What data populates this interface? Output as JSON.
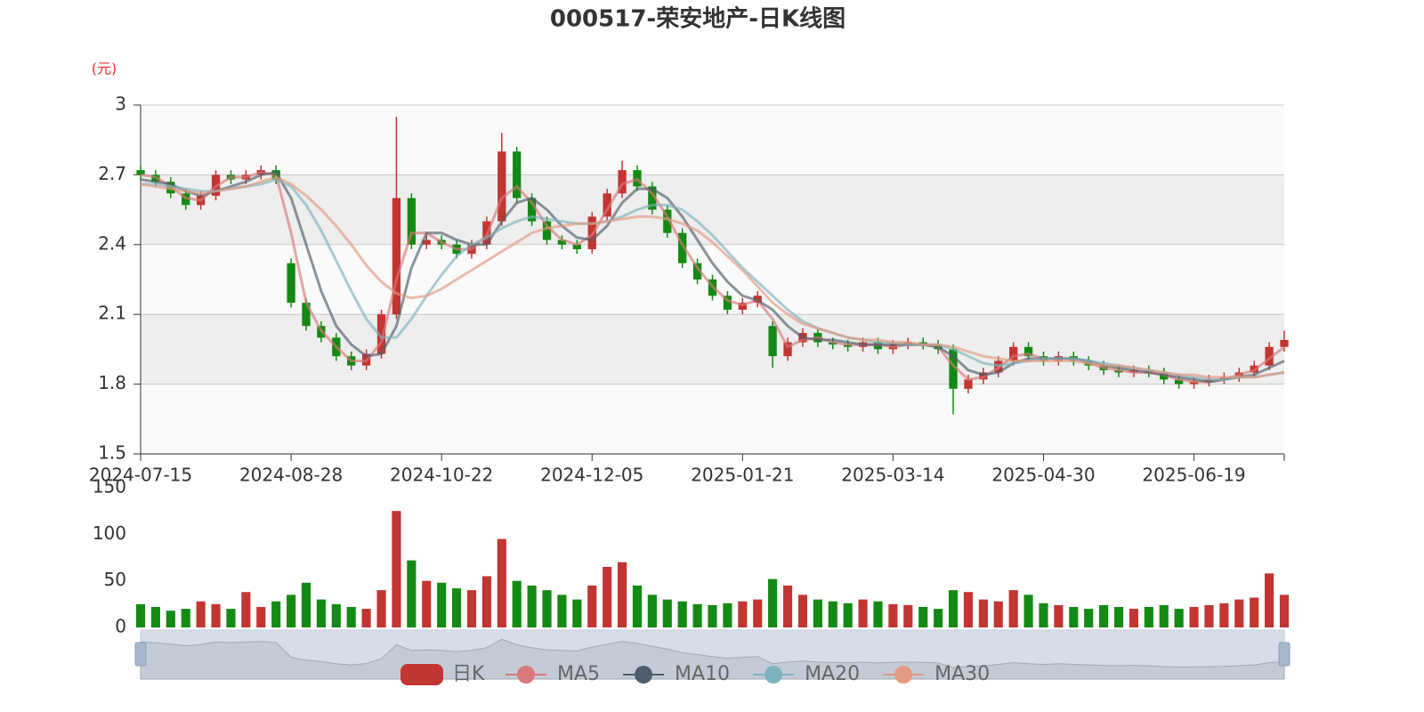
{
  "chart_data": [
    {
      "type": "candlestick",
      "title": "000517-荣安地产-日K线图",
      "y_unit": "(元)",
      "candle_name": "日K",
      "up_color": "#c23531",
      "down_color": "#138a13",
      "categories": [
        "2024-07-15",
        null,
        null,
        null,
        null,
        null,
        null,
        null,
        null,
        null,
        "2024-08-28",
        null,
        null,
        null,
        null,
        null,
        null,
        null,
        null,
        null,
        "2024-10-22",
        null,
        null,
        null,
        null,
        null,
        null,
        null,
        null,
        null,
        "2024-12-05",
        null,
        null,
        null,
        null,
        null,
        null,
        null,
        null,
        null,
        "2025-01-21",
        null,
        null,
        null,
        null,
        null,
        null,
        null,
        null,
        null,
        "2025-03-14",
        null,
        null,
        null,
        null,
        null,
        null,
        null,
        null,
        null,
        "2025-04-30",
        null,
        null,
        null,
        null,
        null,
        null,
        null,
        null,
        null,
        "2025-06-19",
        null,
        null,
        null,
        null,
        null,
        null
      ],
      "open": [
        2.72,
        2.7,
        2.67,
        2.62,
        2.57,
        2.61,
        2.7,
        2.68,
        2.7,
        2.72,
        2.32,
        2.15,
        2.05,
        2.0,
        1.92,
        1.88,
        1.93,
        2.1,
        2.6,
        2.4,
        2.42,
        2.4,
        2.36,
        2.4,
        2.5,
        2.8,
        2.6,
        2.5,
        2.42,
        2.4,
        2.38,
        2.52,
        2.62,
        2.72,
        2.65,
        2.55,
        2.45,
        2.32,
        2.25,
        2.18,
        2.12,
        2.15,
        2.05,
        1.92,
        1.98,
        2.02,
        1.98,
        1.97,
        1.96,
        1.98,
        1.95,
        1.97,
        1.98,
        1.97,
        1.95,
        1.78,
        1.82,
        1.85,
        1.9,
        1.96,
        1.92,
        1.9,
        1.92,
        1.9,
        1.88,
        1.86,
        1.85,
        1.86,
        1.85,
        1.82,
        1.8,
        1.81,
        1.82,
        1.83,
        1.85,
        1.88,
        1.96
      ],
      "close": [
        2.7,
        2.67,
        2.62,
        2.57,
        2.61,
        2.7,
        2.68,
        2.7,
        2.72,
        2.68,
        2.15,
        2.05,
        2.0,
        1.92,
        1.88,
        1.93,
        2.1,
        2.6,
        2.4,
        2.42,
        2.4,
        2.36,
        2.4,
        2.5,
        2.8,
        2.6,
        2.5,
        2.42,
        2.4,
        2.38,
        2.52,
        2.62,
        2.72,
        2.65,
        2.55,
        2.45,
        2.32,
        2.25,
        2.18,
        2.12,
        2.15,
        2.18,
        1.92,
        1.98,
        2.02,
        1.98,
        1.97,
        1.96,
        1.98,
        1.95,
        1.97,
        1.98,
        1.97,
        1.95,
        1.78,
        1.82,
        1.85,
        1.9,
        1.96,
        1.92,
        1.9,
        1.92,
        1.9,
        1.88,
        1.86,
        1.85,
        1.86,
        1.85,
        1.82,
        1.8,
        1.81,
        1.82,
        1.83,
        1.85,
        1.88,
        1.96,
        1.99
      ],
      "low": [
        2.68,
        2.65,
        2.6,
        2.55,
        2.55,
        2.59,
        2.66,
        2.66,
        2.68,
        2.66,
        2.13,
        2.03,
        1.98,
        1.9,
        1.86,
        1.86,
        1.91,
        2.08,
        2.38,
        2.38,
        2.38,
        2.34,
        2.34,
        2.38,
        2.48,
        2.58,
        2.48,
        2.4,
        2.38,
        2.36,
        2.36,
        2.5,
        2.6,
        2.63,
        2.53,
        2.43,
        2.3,
        2.23,
        2.16,
        2.1,
        2.1,
        2.13,
        1.87,
        1.9,
        1.96,
        1.96,
        1.95,
        1.94,
        1.94,
        1.93,
        1.93,
        1.95,
        1.95,
        1.93,
        1.67,
        1.76,
        1.8,
        1.83,
        1.88,
        1.9,
        1.88,
        1.88,
        1.88,
        1.86,
        1.84,
        1.83,
        1.83,
        1.83,
        1.8,
        1.78,
        1.78,
        1.79,
        1.8,
        1.81,
        1.83,
        1.86,
        1.94
      ],
      "high": [
        2.74,
        2.72,
        2.69,
        2.64,
        2.63,
        2.72,
        2.72,
        2.72,
        2.74,
        2.74,
        2.34,
        2.17,
        2.07,
        2.02,
        1.94,
        1.95,
        2.12,
        2.95,
        2.62,
        2.44,
        2.44,
        2.42,
        2.42,
        2.52,
        2.88,
        2.82,
        2.62,
        2.52,
        2.44,
        2.42,
        2.54,
        2.64,
        2.76,
        2.74,
        2.67,
        2.57,
        2.47,
        2.34,
        2.27,
        2.2,
        2.17,
        2.2,
        2.07,
        2.0,
        2.04,
        2.04,
        2.0,
        1.99,
        2.0,
        2.0,
        1.99,
        2.0,
        2.0,
        1.99,
        1.97,
        1.84,
        1.87,
        1.92,
        1.98,
        1.98,
        1.94,
        1.94,
        1.94,
        1.92,
        1.9,
        1.88,
        1.88,
        1.88,
        1.87,
        1.84,
        1.83,
        1.84,
        1.85,
        1.87,
        1.9,
        1.98,
        2.03
      ],
      "series": [
        {
          "name": "MA5",
          "color": "#d9787a",
          "values": [
            2.7,
            2.69,
            2.65,
            2.6,
            2.59,
            2.65,
            2.69,
            2.69,
            2.71,
            2.7,
            2.45,
            2.15,
            2.03,
            1.96,
            1.9,
            1.9,
            1.98,
            2.25,
            2.45,
            2.45,
            2.41,
            2.38,
            2.38,
            2.44,
            2.6,
            2.65,
            2.58,
            2.48,
            2.42,
            2.4,
            2.44,
            2.55,
            2.66,
            2.68,
            2.62,
            2.52,
            2.4,
            2.3,
            2.22,
            2.16,
            2.14,
            2.16,
            2.08,
            1.96,
            1.99,
            2.0,
            1.98,
            1.97,
            1.97,
            1.97,
            1.96,
            1.97,
            1.97,
            1.96,
            1.88,
            1.82,
            1.83,
            1.87,
            1.92,
            1.93,
            1.91,
            1.91,
            1.91,
            1.89,
            1.87,
            1.86,
            1.85,
            1.85,
            1.84,
            1.82,
            1.81,
            1.81,
            1.82,
            1.84,
            1.86,
            1.91,
            1.96
          ]
        },
        {
          "name": "MA10",
          "color": "#4f5d6c",
          "values": [
            2.68,
            2.67,
            2.66,
            2.63,
            2.61,
            2.63,
            2.65,
            2.67,
            2.7,
            2.71,
            2.6,
            2.4,
            2.2,
            2.05,
            1.97,
            1.92,
            1.93,
            2.05,
            2.3,
            2.45,
            2.45,
            2.42,
            2.4,
            2.4,
            2.5,
            2.58,
            2.6,
            2.55,
            2.48,
            2.43,
            2.42,
            2.48,
            2.58,
            2.64,
            2.64,
            2.6,
            2.52,
            2.42,
            2.32,
            2.24,
            2.18,
            2.16,
            2.12,
            2.05,
            2.0,
            1.99,
            1.99,
            1.98,
            1.97,
            1.97,
            1.97,
            1.97,
            1.97,
            1.96,
            1.92,
            1.86,
            1.84,
            1.85,
            1.89,
            1.91,
            1.91,
            1.91,
            1.91,
            1.9,
            1.88,
            1.87,
            1.86,
            1.85,
            1.84,
            1.83,
            1.82,
            1.81,
            1.82,
            1.83,
            1.84,
            1.87,
            1.9
          ]
        },
        {
          "name": "MA20",
          "color": "#7eb3bd",
          "values": [
            2.66,
            2.66,
            2.65,
            2.64,
            2.63,
            2.63,
            2.64,
            2.65,
            2.66,
            2.68,
            2.65,
            2.57,
            2.46,
            2.33,
            2.2,
            2.08,
            2.0,
            2.0,
            2.08,
            2.18,
            2.27,
            2.35,
            2.4,
            2.43,
            2.47,
            2.5,
            2.52,
            2.51,
            2.5,
            2.49,
            2.49,
            2.5,
            2.52,
            2.55,
            2.57,
            2.57,
            2.55,
            2.5,
            2.44,
            2.37,
            2.3,
            2.24,
            2.18,
            2.12,
            2.07,
            2.04,
            2.02,
            2.0,
            1.99,
            1.98,
            1.98,
            1.97,
            1.97,
            1.97,
            1.95,
            1.92,
            1.89,
            1.88,
            1.89,
            1.9,
            1.91,
            1.91,
            1.91,
            1.9,
            1.89,
            1.88,
            1.87,
            1.86,
            1.85,
            1.84,
            1.83,
            1.82,
            1.82,
            1.83,
            1.83,
            1.84,
            1.85
          ]
        },
        {
          "name": "MA30",
          "color": "#e39a80",
          "values": [
            2.66,
            2.65,
            2.64,
            2.63,
            2.62,
            2.63,
            2.64,
            2.65,
            2.67,
            2.69,
            2.66,
            2.61,
            2.55,
            2.48,
            2.4,
            2.31,
            2.24,
            2.19,
            2.17,
            2.18,
            2.21,
            2.25,
            2.29,
            2.33,
            2.37,
            2.41,
            2.45,
            2.47,
            2.48,
            2.49,
            2.49,
            2.5,
            2.51,
            2.52,
            2.52,
            2.51,
            2.49,
            2.46,
            2.41,
            2.35,
            2.29,
            2.22,
            2.15,
            2.1,
            2.06,
            2.04,
            2.02,
            2.0,
            1.99,
            1.99,
            1.98,
            1.98,
            1.97,
            1.97,
            1.96,
            1.94,
            1.92,
            1.91,
            1.9,
            1.9,
            1.9,
            1.9,
            1.9,
            1.89,
            1.88,
            1.88,
            1.87,
            1.86,
            1.85,
            1.84,
            1.84,
            1.83,
            1.83,
            1.83,
            1.83,
            1.84,
            1.85
          ]
        }
      ],
      "ylim": [
        1.5,
        3
      ],
      "yticks": [
        1.5,
        1.8,
        2.1,
        2.4,
        2.7,
        3
      ],
      "grid": true
    },
    {
      "type": "bar",
      "values": [
        25,
        22,
        18,
        20,
        28,
        25,
        20,
        38,
        22,
        28,
        35,
        48,
        30,
        25,
        22,
        20,
        40,
        125,
        72,
        50,
        48,
        42,
        40,
        55,
        95,
        50,
        45,
        40,
        35,
        30,
        45,
        65,
        70,
        45,
        35,
        30,
        28,
        25,
        24,
        26,
        28,
        30,
        52,
        45,
        35,
        30,
        28,
        26,
        30,
        28,
        25,
        24,
        22,
        20,
        40,
        38,
        30,
        28,
        40,
        35,
        26,
        24,
        22,
        20,
        24,
        22,
        20,
        22,
        24,
        20,
        22,
        24,
        26,
        30,
        32,
        58,
        35
      ],
      "ylim": [
        0,
        150
      ],
      "yticks": [
        0,
        50,
        100,
        150
      ]
    }
  ]
}
